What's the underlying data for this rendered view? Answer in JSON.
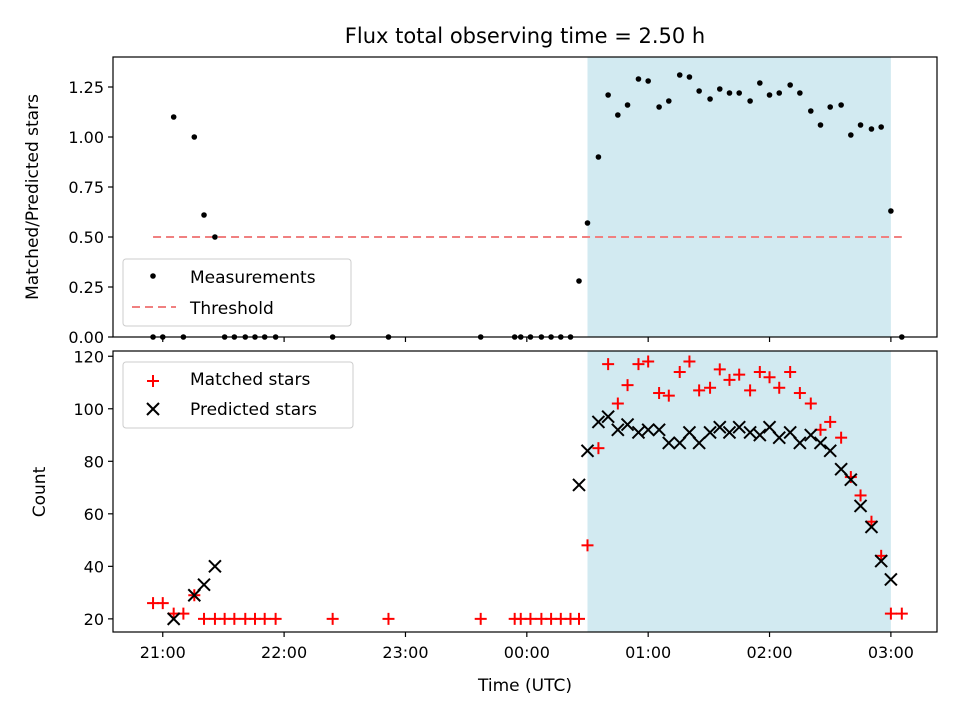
{
  "title": "Flux total observing time = 2.50 h",
  "chart_data": [
    {
      "type": "scatter",
      "ylabel": "Matched/Predicted stars",
      "xlabel": "",
      "xlim": [
        20.59,
        27.38
      ],
      "ylim": [
        0.0,
        1.4
      ],
      "yticks": [
        0.0,
        0.25,
        0.5,
        0.75,
        1.0,
        1.25
      ],
      "ytick_labels": [
        "0.00",
        "0.25",
        "0.50",
        "0.75",
        "1.00",
        "1.25"
      ],
      "shaded_interval": [
        24.5,
        27.0
      ],
      "legend": [
        "Measurements",
        "Threshold"
      ],
      "legend_position": "lower left",
      "threshold": {
        "name": "Threshold",
        "x": [
          20.92,
          27.09
        ],
        "y": 0.5,
        "color": "#f08080",
        "style": "dashed"
      },
      "series": [
        {
          "name": "Measurements",
          "color": "#000000",
          "x": [
            20.92,
            21.0,
            21.09,
            21.17,
            21.26,
            21.34,
            21.43,
            21.51,
            21.59,
            21.68,
            21.76,
            21.84,
            21.93,
            22.4,
            22.86,
            23.62,
            23.9,
            23.95,
            24.03,
            24.12,
            24.2,
            24.28,
            24.36,
            24.43,
            24.5,
            24.59,
            24.67,
            24.75,
            24.83,
            24.92,
            25.0,
            25.09,
            25.17,
            25.26,
            25.34,
            25.42,
            25.51,
            25.59,
            25.67,
            25.75,
            25.84,
            25.92,
            26.0,
            26.08,
            26.17,
            26.25,
            26.34,
            26.42,
            26.5,
            26.59,
            26.67,
            26.75,
            26.84,
            26.92,
            27.0,
            27.09
          ],
          "y": [
            0.0,
            0.0,
            1.1,
            0.0,
            1.0,
            0.61,
            0.5,
            0.0,
            0.0,
            0.0,
            0.0,
            0.0,
            0.0,
            0.0,
            0.0,
            0.0,
            0.0,
            0.0,
            0.0,
            0.0,
            0.0,
            0.0,
            0.0,
            0.28,
            0.57,
            0.9,
            1.21,
            1.11,
            1.16,
            1.29,
            1.28,
            1.15,
            1.18,
            1.31,
            1.3,
            1.23,
            1.19,
            1.24,
            1.22,
            1.22,
            1.18,
            1.27,
            1.21,
            1.22,
            1.26,
            1.22,
            1.13,
            1.06,
            1.15,
            1.16,
            1.01,
            1.06,
            1.04,
            1.05,
            0.63,
            0.0
          ]
        }
      ]
    },
    {
      "type": "scatter",
      "ylabel": "Count",
      "xlabel": "Time (UTC)",
      "xlim": [
        20.59,
        27.38
      ],
      "ylim": [
        15,
        122
      ],
      "yticks": [
        20,
        40,
        60,
        80,
        100,
        120
      ],
      "ytick_labels": [
        "20",
        "40",
        "60",
        "80",
        "100",
        "120"
      ],
      "xticks": [
        21,
        22,
        23,
        24,
        25,
        26,
        27
      ],
      "xtick_labels": [
        "21:00",
        "22:00",
        "23:00",
        "00:00",
        "01:00",
        "02:00",
        "03:00"
      ],
      "shaded_interval": [
        24.5,
        27.0
      ],
      "legend": [
        "Matched stars",
        "Predicted stars"
      ],
      "legend_position": "upper left",
      "series": [
        {
          "name": "Matched stars",
          "color": "#ff0000",
          "marker": "+",
          "x": [
            20.92,
            21.0,
            21.09,
            21.17,
            21.26,
            21.34,
            21.43,
            21.51,
            21.59,
            21.68,
            21.76,
            21.84,
            21.93,
            22.4,
            22.86,
            23.62,
            23.9,
            23.95,
            24.03,
            24.12,
            24.2,
            24.28,
            24.36,
            24.43,
            24.5,
            24.59,
            24.67,
            24.75,
            24.83,
            24.92,
            25.0,
            25.09,
            25.17,
            25.26,
            25.34,
            25.42,
            25.51,
            25.59,
            25.67,
            25.75,
            25.84,
            25.92,
            26.0,
            26.08,
            26.17,
            26.25,
            26.34,
            26.42,
            26.5,
            26.59,
            26.67,
            26.75,
            26.84,
            26.92,
            27.0,
            27.09
          ],
          "y": [
            26,
            26,
            22,
            22,
            29,
            20,
            20,
            20,
            20,
            20,
            20,
            20,
            20,
            20,
            20,
            20,
            20,
            20,
            20,
            20,
            20,
            20,
            20,
            20,
            48,
            85,
            117,
            102,
            109,
            117,
            118,
            106,
            105,
            114,
            118,
            107,
            108,
            115,
            111,
            113,
            107,
            114,
            112,
            108,
            114,
            106,
            102,
            92,
            95,
            89,
            74,
            67,
            57,
            44,
            22,
            22
          ]
        },
        {
          "name": "Predicted stars",
          "color": "#000000",
          "marker": "x",
          "x": [
            21.09,
            21.26,
            21.34,
            21.43,
            24.43,
            24.5,
            24.59,
            24.67,
            24.75,
            24.83,
            24.92,
            25.0,
            25.09,
            25.17,
            25.26,
            25.34,
            25.42,
            25.51,
            25.59,
            25.67,
            25.75,
            25.84,
            25.92,
            26.0,
            26.08,
            26.17,
            26.25,
            26.34,
            26.42,
            26.5,
            26.59,
            26.67,
            26.75,
            26.84,
            26.92,
            27.0
          ],
          "y": [
            20,
            29,
            33,
            40,
            71,
            84,
            95,
            97,
            92,
            94,
            91,
            92,
            92,
            87,
            87,
            91,
            87,
            91,
            93,
            91,
            93,
            91,
            90,
            93,
            89,
            91,
            87,
            90,
            87,
            84,
            77,
            73,
            63,
            55,
            42,
            35
          ]
        }
      ]
    }
  ]
}
